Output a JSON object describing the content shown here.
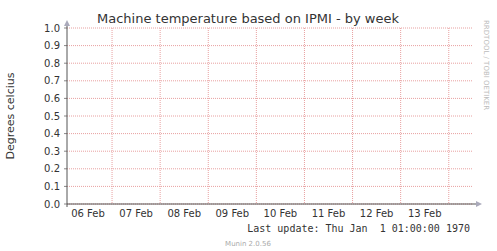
{
  "chart_data": {
    "type": "line",
    "title": "Machine temperature based on IPMI - by week",
    "ylabel": "Degrees celcius",
    "categories": [
      "06 Feb",
      "07 Feb",
      "08 Feb",
      "09 Feb",
      "10 Feb",
      "11 Feb",
      "12 Feb",
      "13 Feb"
    ],
    "series": [],
    "ylim": [
      0,
      1
    ],
    "yticks": [
      {
        "value": 0,
        "label": "0.0"
      },
      {
        "value": 0.1,
        "label": "0.1"
      },
      {
        "value": 0.2,
        "label": "0.2"
      },
      {
        "value": 0.3,
        "label": "0.3"
      },
      {
        "value": 0.4,
        "label": "0.4"
      },
      {
        "value": 0.5,
        "label": "0.5"
      },
      {
        "value": 0.6,
        "label": "0.6"
      },
      {
        "value": 0.7,
        "label": "0.7"
      },
      {
        "value": 0.8,
        "label": "0.8"
      },
      {
        "value": 0.9,
        "label": "0.9"
      },
      {
        "value": 1,
        "label": "1.0"
      }
    ],
    "grid": true,
    "annotations": [
      "RRDTOOL / TOBI OETIKER",
      "Last update: Thu Jan  1 01:00:00 1970",
      "Munin 2.0.56"
    ]
  }
}
